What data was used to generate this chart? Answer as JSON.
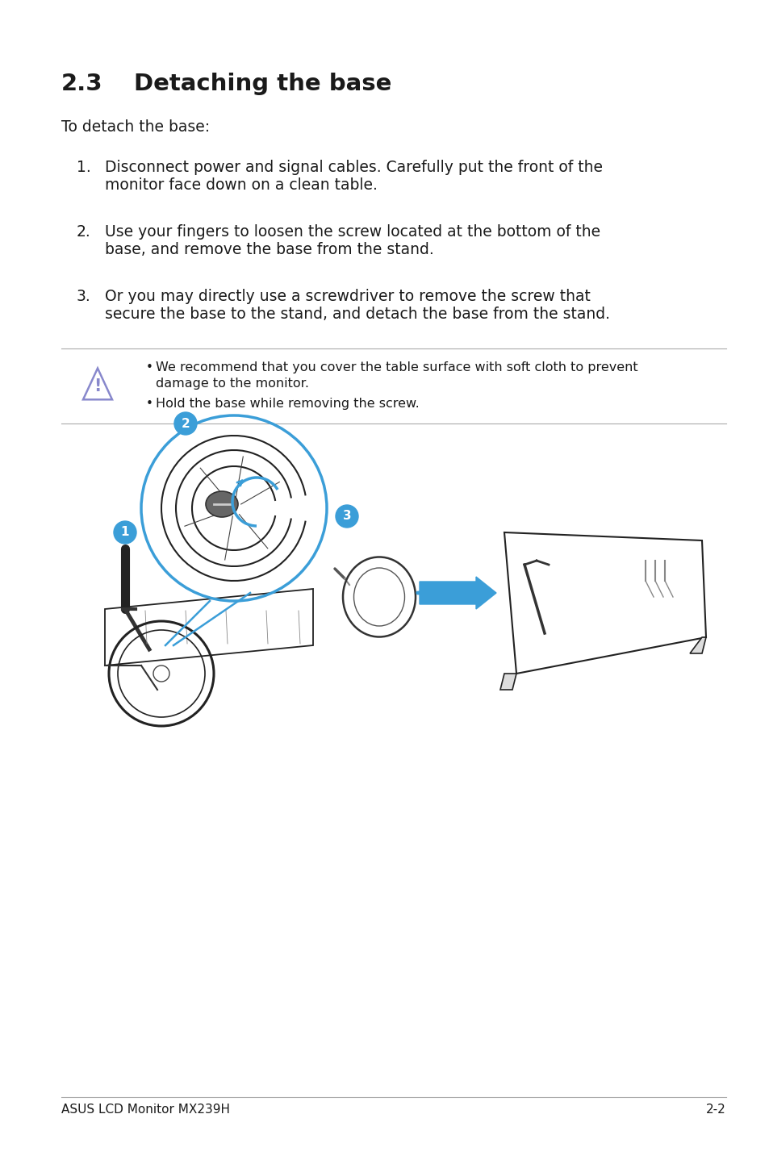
{
  "bg_color": "#ffffff",
  "title_num": "2.3",
  "title_text": "Detaching the base",
  "intro": "To detach the base:",
  "steps": [
    {
      "num": "1.",
      "line1": "Disconnect power and signal cables. Carefully put the front of the",
      "line2": "monitor face down on a clean table."
    },
    {
      "num": "2.",
      "line1": "Use your fingers to loosen the screw located at the bottom of the",
      "line2": "base, and remove the base from the stand."
    },
    {
      "num": "3.",
      "line1": "Or you may directly use a screwdriver to remove the screw that",
      "line2": "secure the base to the stand, and detach the base from the stand."
    }
  ],
  "warn1_line1": "We recommend that you cover the table surface with soft cloth to prevent",
  "warn1_line2": "damage to the monitor.",
  "warn2": "Hold the base while removing the screw.",
  "footer_left": "ASUS LCD Monitor MX239H",
  "footer_right": "2-2",
  "text_color": "#1a1a1a",
  "gray_text": "#555555",
  "line_color": "#aaaaaa",
  "blue_color": "#3b9ed8",
  "warn_tri_color": "#8888cc",
  "title_fontsize": 21,
  "body_fontsize": 13.5,
  "small_fontsize": 11.5,
  "footer_fontsize": 11
}
